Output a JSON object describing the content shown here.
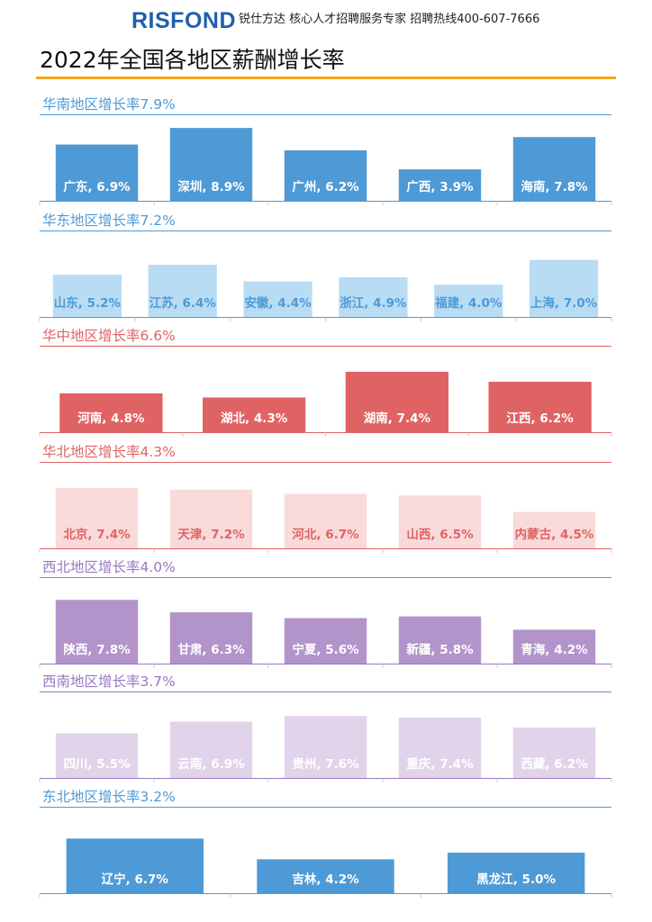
{
  "header": {
    "logo_text": "RISFOND",
    "tagline": "锐仕方达 核心人才招聘服务专家 招聘热线400-607-7666"
  },
  "page_title": "2022年全国各地区薪酬增长率",
  "chart_data": [
    {
      "type": "bar",
      "title": "华南地区增长率7.9%",
      "categories": [
        "广东",
        "深圳",
        "广州",
        "广西",
        "海南"
      ],
      "values": [
        6.9,
        8.9,
        6.2,
        3.9,
        7.8
      ],
      "labels": [
        "广东, 6.9%",
        "深圳, 8.9%",
        "广州, 6.2%",
        "广西, 3.9%",
        "海南, 7.8%"
      ],
      "colors": {
        "bar": "#4e9ad6",
        "label": "#ffffff",
        "title": "#4e9ad6",
        "rule": "#4e9ad6"
      }
    },
    {
      "type": "bar",
      "title": "华东地区增长率7.2%",
      "categories": [
        "山东",
        "江苏",
        "安徽",
        "浙江",
        "福建",
        "上海"
      ],
      "values": [
        5.2,
        6.4,
        4.4,
        4.9,
        4.0,
        7.0
      ],
      "labels": [
        "山东, 5.2%",
        "江苏, 6.4%",
        "安徽, 4.4%",
        "浙江, 4.9%",
        "福建, 4.0%",
        "上海, 7.0%"
      ],
      "colors": {
        "bar": "#b8dcf3",
        "label": "#4e9ad6",
        "title": "#4e9ad6",
        "rule": "#4e9ad6"
      }
    },
    {
      "type": "bar",
      "title": "华中地区增长率6.6%",
      "categories": [
        "河南",
        "湖北",
        "湖南",
        "江西"
      ],
      "values": [
        4.8,
        4.3,
        7.4,
        6.2
      ],
      "labels": [
        "河南, 4.8%",
        "湖北, 4.3%",
        "湖南, 7.4%",
        "江西, 6.2%"
      ],
      "colors": {
        "bar": "#e06363",
        "label": "#ffffff",
        "title": "#e06363",
        "rule": "#e06363"
      }
    },
    {
      "type": "bar",
      "title": "华北地区增长率4.3%",
      "categories": [
        "北京",
        "天津",
        "河北",
        "山西",
        "内蒙古"
      ],
      "values": [
        7.4,
        7.2,
        6.7,
        6.5,
        4.5
      ],
      "labels": [
        "北京, 7.4%",
        "天津, 7.2%",
        "河北, 6.7%",
        "山西, 6.5%",
        "内蒙古, 4.5%"
      ],
      "colors": {
        "bar": "#f9dada",
        "label": "#e06363",
        "title": "#e06363",
        "rule": "#e06363"
      }
    },
    {
      "type": "bar",
      "title": "西北地区增长率4.0%",
      "categories": [
        "陕西",
        "甘肃",
        "宁夏",
        "新疆",
        "青海"
      ],
      "values": [
        7.8,
        6.3,
        5.6,
        5.8,
        4.2
      ],
      "labels": [
        "陕西, 7.8%",
        "甘肃, 6.3%",
        "宁夏, 5.6%",
        "新疆, 5.8%",
        "青海, 4.2%"
      ],
      "colors": {
        "bar": "#b294cb",
        "label": "#ffffff",
        "title": "#9a78bd",
        "rule": "#9a78bd"
      }
    },
    {
      "type": "bar",
      "title": "西南地区增长率3.7%",
      "categories": [
        "四川",
        "云南",
        "贵州",
        "重庆",
        "西藏"
      ],
      "values": [
        5.5,
        6.9,
        7.6,
        7.4,
        6.2
      ],
      "labels": [
        "四川, 5.5%",
        "云南, 6.9%",
        "贵州, 7.6%",
        "重庆, 7.4%",
        "西藏, 6.2%"
      ],
      "colors": {
        "bar": "#e1d4ea",
        "label": "#ffffff",
        "title": "#9a78bd",
        "rule": "#9a78bd"
      }
    },
    {
      "type": "bar",
      "title": "东北地区增长率3.2%",
      "categories": [
        "辽宁",
        "吉林",
        "黑龙江"
      ],
      "values": [
        6.7,
        4.2,
        5.0
      ],
      "labels": [
        "辽宁, 6.7%",
        "吉林, 4.2%",
        "黑龙江, 5.0%"
      ],
      "colors": {
        "bar": "#4e9ad6",
        "label": "#ffffff",
        "title": "#4e9ad6",
        "rule": "#4e9ad6"
      }
    }
  ]
}
